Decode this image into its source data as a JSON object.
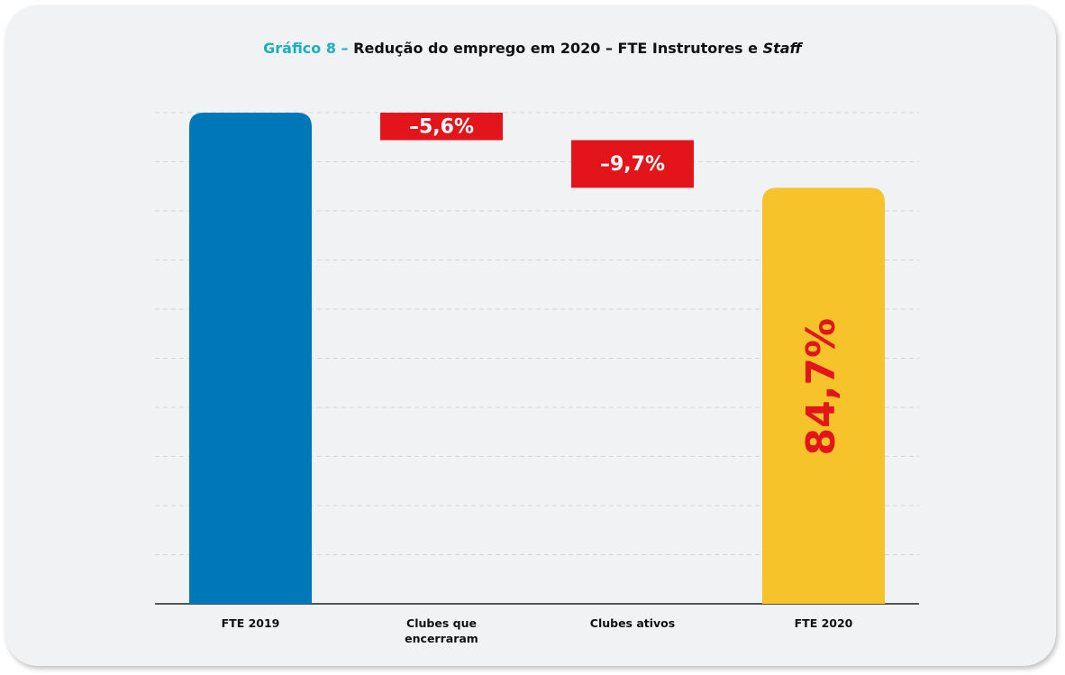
{
  "chart_data": {
    "type": "waterfall",
    "title_prefix": "Gráfico 8 –",
    "title": "Redução do emprego em 2020 – FTE Instrutores e",
    "title_italic": "Staff",
    "categories": [
      "FTE 2019",
      "Clubes que encerraram",
      "Clubes ativos",
      "FTE 2020"
    ],
    "values": [
      100,
      -5.6,
      -9.7,
      84.7
    ],
    "value_labels": [
      null,
      "–5,6%",
      "–9,7%",
      "84,7%"
    ],
    "kinds": [
      "total",
      "delta",
      "delta",
      "total"
    ],
    "colors": [
      "#0077b8",
      "#e3151a",
      "#e3151a",
      "#f6c42a"
    ],
    "ylim": [
      0,
      100
    ],
    "yticks": [
      0,
      10,
      20,
      30,
      40,
      50,
      60,
      70,
      80,
      90,
      100
    ],
    "grid": true
  }
}
